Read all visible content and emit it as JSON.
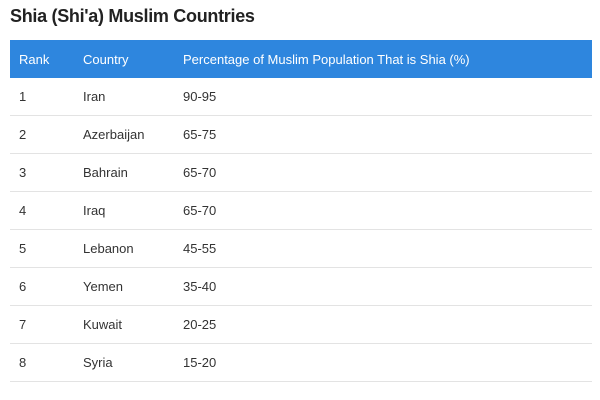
{
  "title": "Shia (Shi'a) Muslim Countries",
  "table": {
    "columns": [
      "Rank",
      "Country",
      "Percentage of Muslim Population That is Shia (%)"
    ],
    "rows": [
      [
        "1",
        "Iran",
        "90-95"
      ],
      [
        "2",
        "Azerbaijan",
        "65-75"
      ],
      [
        "3",
        "Bahrain",
        "65-70"
      ],
      [
        "4",
        "Iraq",
        "65-70"
      ],
      [
        "5",
        "Lebanon",
        "45-55"
      ],
      [
        "6",
        "Yemen",
        "35-40"
      ],
      [
        "7",
        "Kuwait",
        "20-25"
      ],
      [
        "8",
        "Syria",
        "15-20"
      ]
    ]
  }
}
